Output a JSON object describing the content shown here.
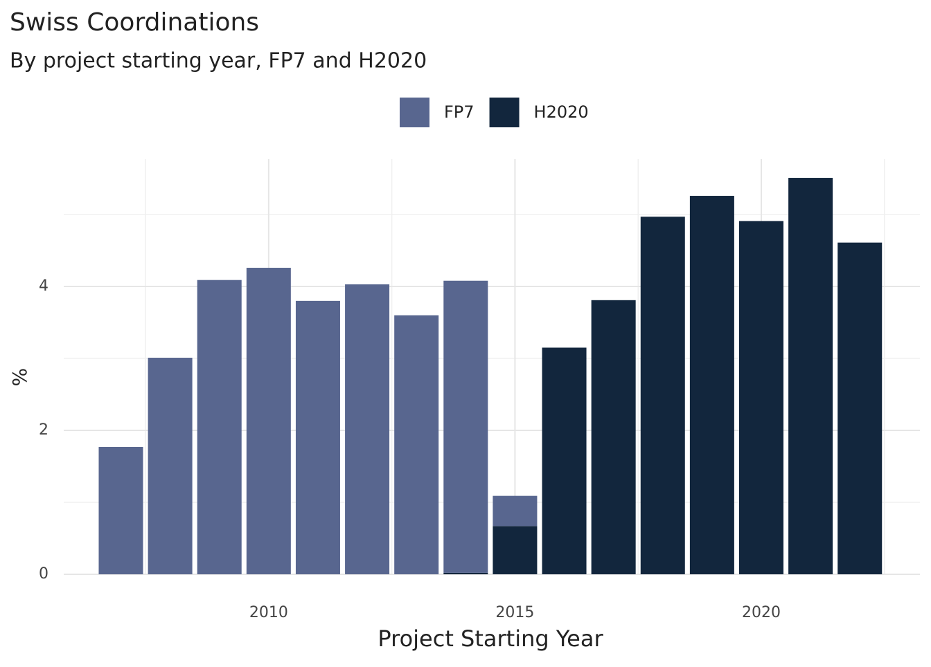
{
  "chart_data": {
    "type": "stacked-bar",
    "title": "Swiss Coordinations",
    "subtitle": "By project starting year, FP7 and H2020",
    "x_label": "Project Starting Year",
    "y_label": "%",
    "x": [
      2007,
      2008,
      2009,
      2010,
      2011,
      2012,
      2013,
      2014,
      2015,
      2016,
      2017,
      2018,
      2019,
      2020,
      2021,
      2022
    ],
    "series": [
      {
        "name": "FP7",
        "color": "#58668f",
        "values": [
          1.77,
          3.01,
          4.09,
          4.26,
          3.8,
          4.03,
          3.6,
          4.06,
          0.42,
          0,
          0,
          0,
          0,
          0,
          0,
          0
        ]
      },
      {
        "name": "H2020",
        "color": "#12263d",
        "values": [
          0,
          0,
          0,
          0,
          0,
          0,
          0,
          0.02,
          0.67,
          3.15,
          3.81,
          4.97,
          5.26,
          4.91,
          5.51,
          4.61
        ]
      }
    ],
    "xlim": [
      2005.84,
      2023.22
    ],
    "xticks": [
      2010,
      2015,
      2020
    ],
    "ylim": [
      0,
      5.77
    ],
    "yticks": [
      0,
      2,
      4
    ],
    "grid": true,
    "legend_position": "top"
  }
}
